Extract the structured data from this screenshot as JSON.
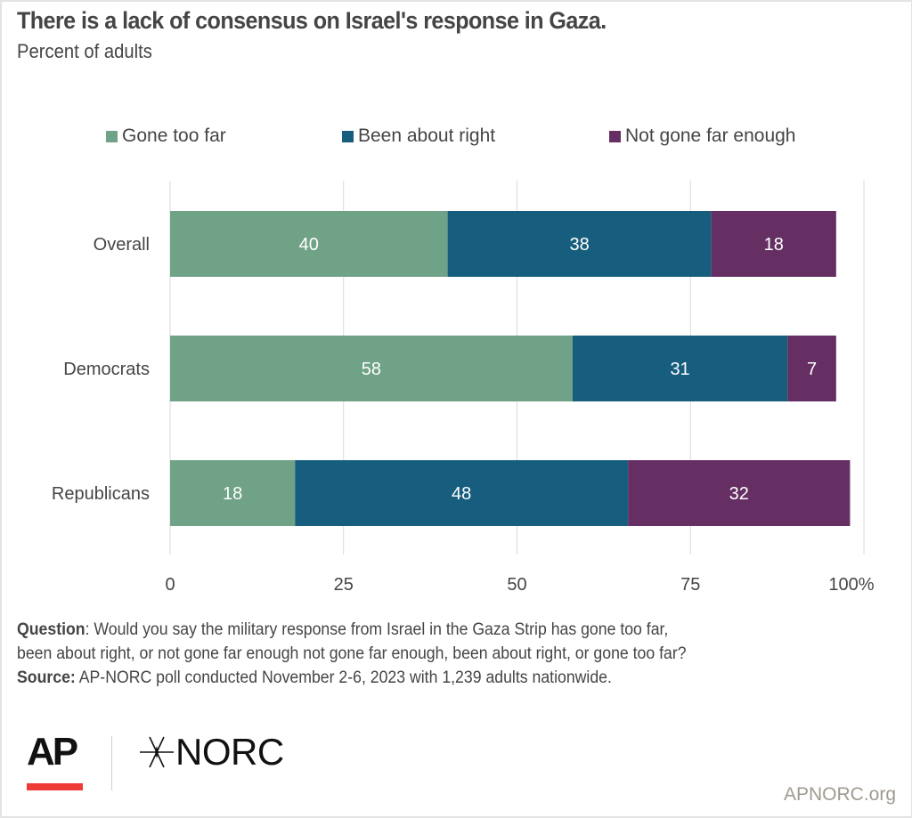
{
  "header": {
    "title": "There is a lack of consensus on Israel's response in Gaza.",
    "subtitle": "Percent of adults"
  },
  "legend": [
    {
      "label": "Gone too far",
      "color": "#6fa287"
    },
    {
      "label": "Been about right",
      "color": "#175d7d"
    },
    {
      "label": "Not gone far enough",
      "color": "#652f63"
    }
  ],
  "chart_data": {
    "type": "bar",
    "orientation": "horizontal",
    "stacked": true,
    "title": "There is a lack of consensus on Israel's response in Gaza.",
    "subtitle": "Percent of adults",
    "xlabel": "",
    "ylabel": "",
    "categories": [
      "Overall",
      "Democrats",
      "Republicans"
    ],
    "series": [
      {
        "name": "Gone too far",
        "color": "#6fa287",
        "values": [
          40,
          58,
          18
        ]
      },
      {
        "name": "Been about right",
        "color": "#175d7d",
        "values": [
          38,
          31,
          48
        ]
      },
      {
        "name": "Not gone far enough",
        "color": "#652f63",
        "values": [
          18,
          7,
          32
        ]
      }
    ],
    "xlim": [
      0,
      100
    ],
    "xticks": [
      0,
      25,
      50,
      75,
      100
    ],
    "xtick_labels": [
      "0",
      "25",
      "50",
      "75",
      "100%"
    ],
    "grid": true,
    "legend_position": "top",
    "data_labels": true
  },
  "footnote": {
    "question_label": "Question",
    "question_text": ": Would you say the military response from Israel in the Gaza Strip has gone too far,",
    "question_text_2": "been about right, or not gone far enough not gone far enough, been about right, or gone too far?",
    "source_label": "Source:",
    "source_text": " AP-NORC poll conducted November 2-6, 2023 with 1,239 adults nationwide."
  },
  "branding": {
    "ap_logo": "AP",
    "norc_logo": "NORC",
    "norc_star_icon": "star-burst-icon",
    "site": "APNORC.org",
    "ap_accent_color": "#ef3b36"
  }
}
